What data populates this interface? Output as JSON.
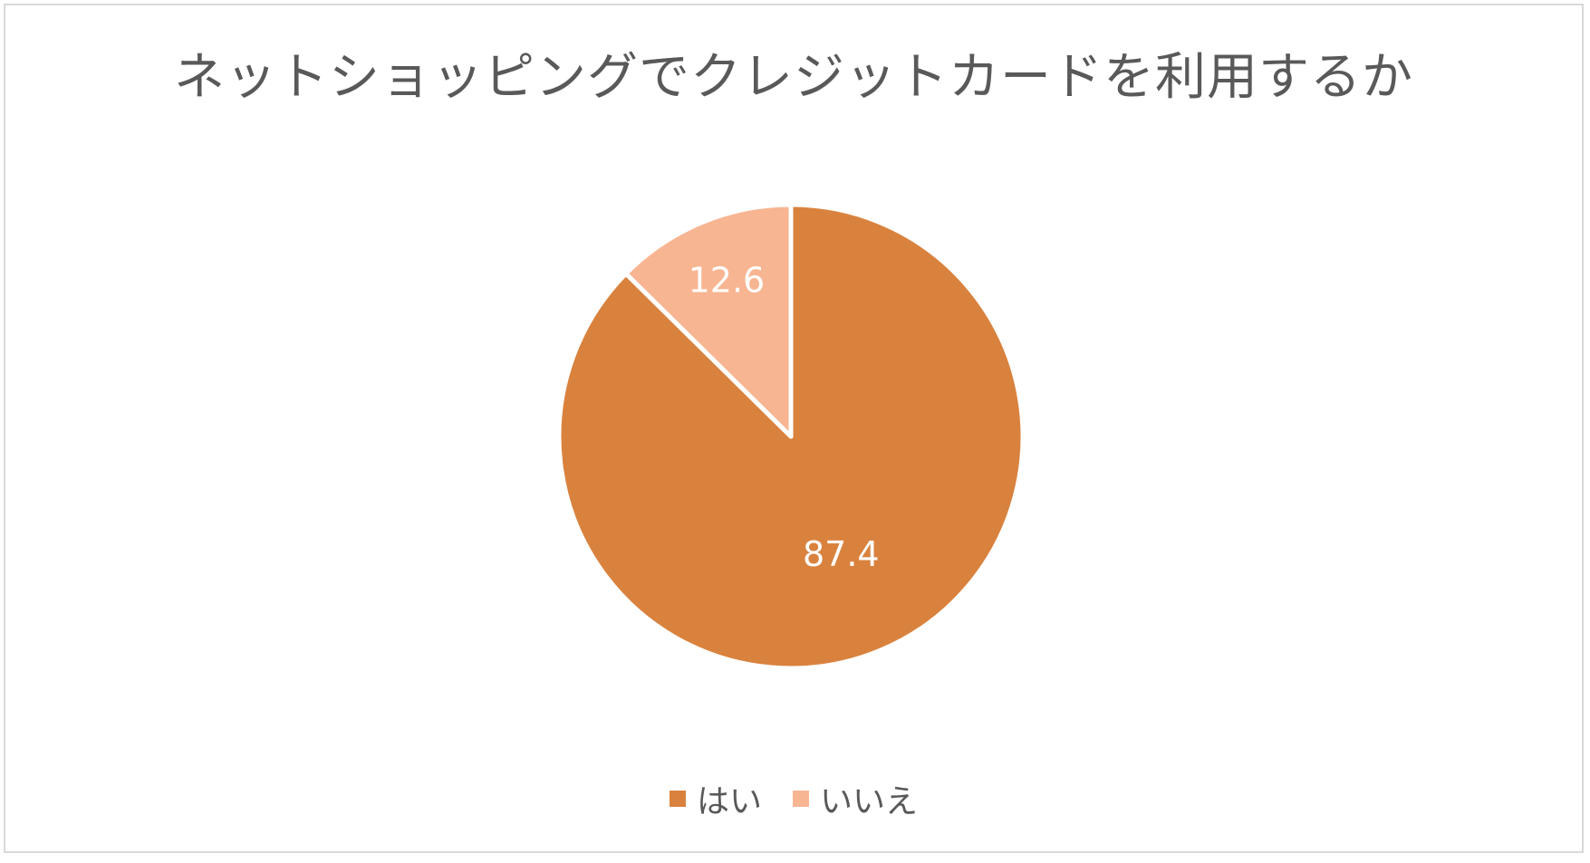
{
  "chart_data": {
    "type": "pie",
    "title": "ネットショッピングでクレジットカードを利用するか",
    "categories": [
      "はい",
      "いいえ"
    ],
    "values": [
      87.4,
      12.6
    ],
    "data_labels": [
      "87.4",
      "12.6"
    ],
    "colors": [
      "#d9823e",
      "#f7b592"
    ],
    "start": "12 o'clock, clockwise",
    "legend_position": "bottom",
    "label_color": "#ffffff"
  }
}
